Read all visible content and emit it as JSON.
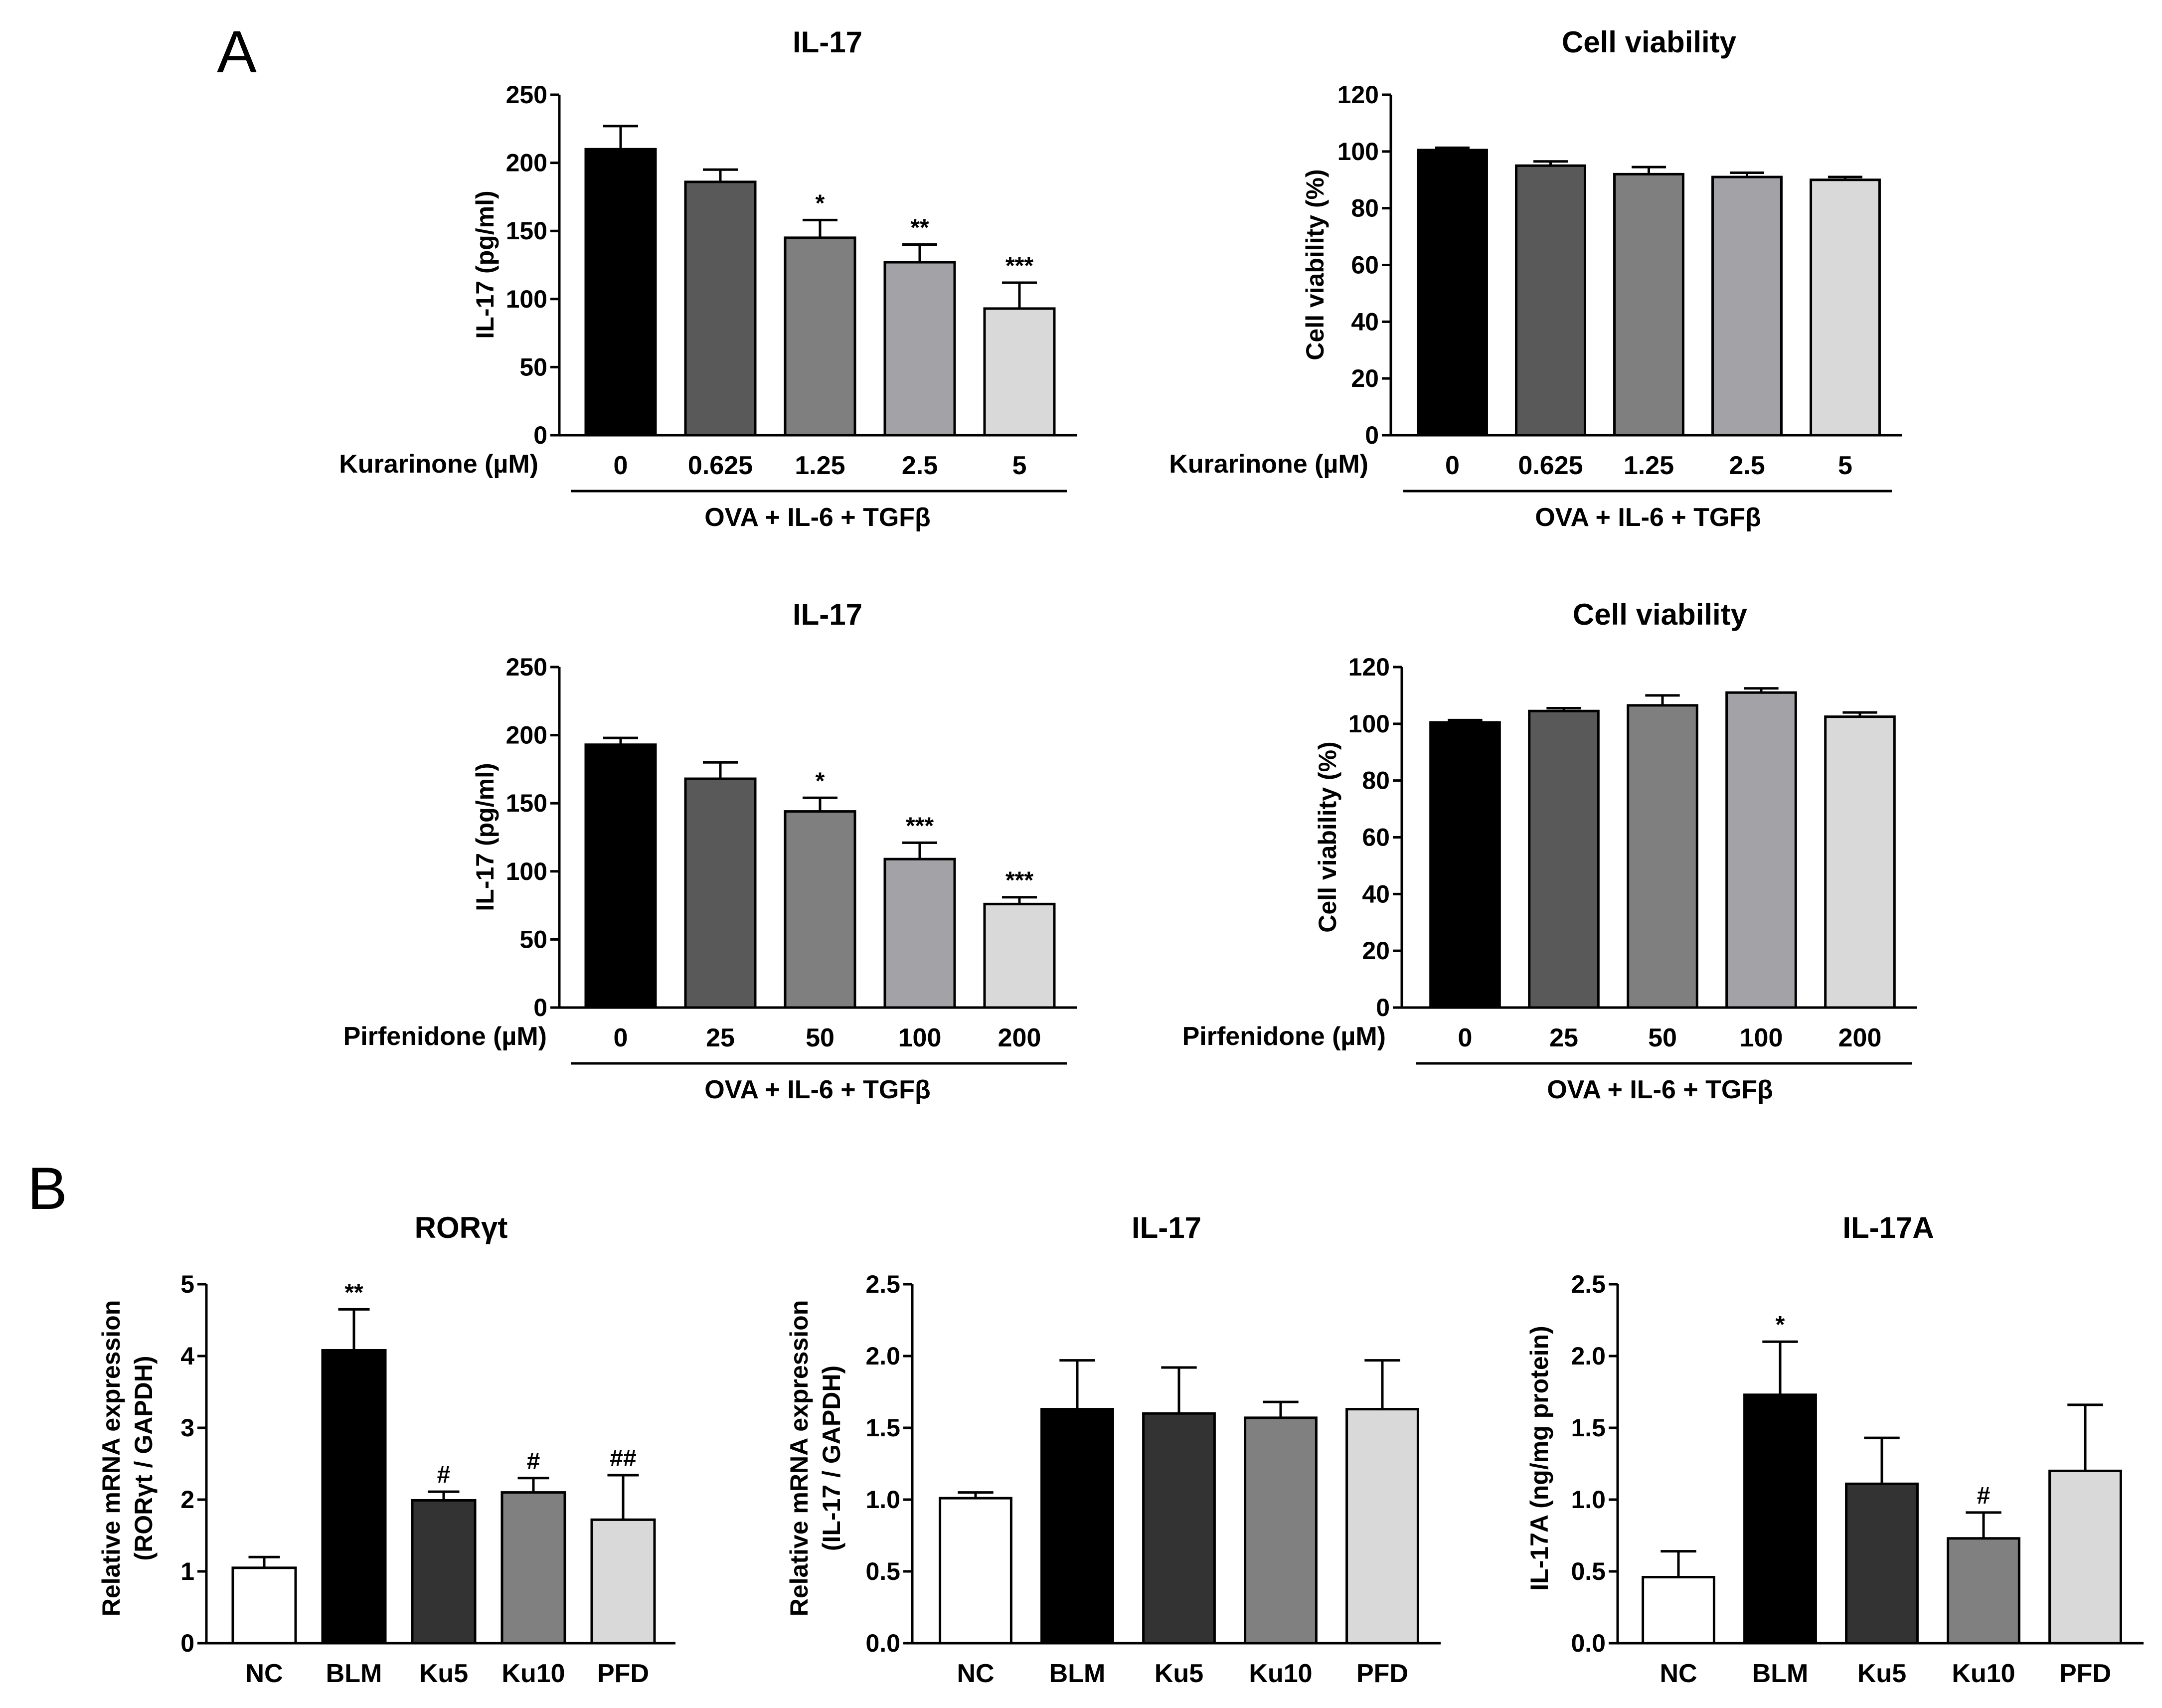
{
  "panels": {
    "A": "A",
    "B": "B"
  },
  "chart_data": [
    {
      "type": "bar",
      "title": "IL-17",
      "ylabel": "IL-17 (pg/ml)",
      "xlabel": "Kurarinone (µM)",
      "group_label": "OVA + IL-6 + TGFβ",
      "categories": [
        "0",
        "0.625",
        "1.25",
        "2.5",
        "5"
      ],
      "values": [
        210,
        186,
        145,
        127,
        93
      ],
      "errors": [
        17,
        9,
        13,
        13,
        19
      ],
      "significance": [
        "",
        "",
        "*",
        "**",
        "***"
      ],
      "ylim": [
        0,
        250
      ],
      "yticks": [
        0,
        50,
        100,
        150,
        200,
        250
      ],
      "ytick_labels": [
        "0",
        "50",
        "100",
        "150",
        "200",
        "250"
      ],
      "colors": [
        "#000000",
        "#595959",
        "#7f7f7f",
        "#a2a2a7",
        "#d9d9d9"
      ]
    },
    {
      "type": "bar",
      "title": "Cell viability",
      "ylabel": "Cell viability (%)",
      "xlabel": "Kurarinone (µM)",
      "group_label": "OVA + IL-6 + TGFβ",
      "categories": [
        "0",
        "0.625",
        "1.25",
        "2.5",
        "5"
      ],
      "values": [
        100.5,
        95,
        92,
        91,
        90
      ],
      "errors": [
        0.8,
        1.5,
        2.5,
        1.5,
        1.0
      ],
      "significance": [
        "",
        "",
        "",
        "",
        ""
      ],
      "ylim": [
        0,
        120
      ],
      "yticks": [
        0,
        20,
        40,
        60,
        80,
        100,
        120
      ],
      "ytick_labels": [
        "0",
        "20",
        "40",
        "60",
        "80",
        "100",
        "120"
      ],
      "colors": [
        "#000000",
        "#595959",
        "#7f7f7f",
        "#a2a2a7",
        "#d9d9d9"
      ]
    },
    {
      "type": "bar",
      "title": "IL-17",
      "ylabel": "IL-17 (pg/ml)",
      "xlabel": "Pirfenidone (µM)",
      "group_label": "OVA + IL-6 + TGFβ",
      "categories": [
        "0",
        "25",
        "50",
        "100",
        "200"
      ],
      "values": [
        193,
        168,
        144,
        109,
        76
      ],
      "errors": [
        5,
        12,
        10,
        12,
        5
      ],
      "significance": [
        "",
        "",
        "*",
        "***",
        "***"
      ],
      "ylim": [
        0,
        250
      ],
      "yticks": [
        0,
        50,
        100,
        150,
        200,
        250
      ],
      "ytick_labels": [
        "0",
        "50",
        "100",
        "150",
        "200",
        "250"
      ],
      "colors": [
        "#000000",
        "#595959",
        "#7f7f7f",
        "#a2a2a7",
        "#d9d9d9"
      ]
    },
    {
      "type": "bar",
      "title": "Cell viability",
      "ylabel": "Cell viability (%)",
      "xlabel": "Pirfenidone (µM)",
      "group_label": "OVA + IL-6 + TGFβ",
      "categories": [
        "0",
        "25",
        "50",
        "100",
        "200"
      ],
      "values": [
        100.5,
        104.5,
        106.5,
        111,
        102.5
      ],
      "errors": [
        0.8,
        1.0,
        3.5,
        1.5,
        1.5
      ],
      "significance": [
        "",
        "",
        "",
        "",
        ""
      ],
      "ylim": [
        0,
        120
      ],
      "yticks": [
        0,
        20,
        40,
        60,
        80,
        100,
        120
      ],
      "ytick_labels": [
        "0",
        "20",
        "40",
        "60",
        "80",
        "100",
        "120"
      ],
      "colors": [
        "#000000",
        "#595959",
        "#7f7f7f",
        "#a2a2a7",
        "#d9d9d9"
      ]
    },
    {
      "type": "bar",
      "title": "RORγt",
      "ylabel": [
        "Relative mRNA expression",
        "(RORγt / GAPDH)"
      ],
      "categories": [
        "NC",
        "BLM",
        "Ku5",
        "Ku10",
        "PFD"
      ],
      "values": [
        1.05,
        4.08,
        1.99,
        2.1,
        1.72
      ],
      "errors": [
        0.15,
        0.57,
        0.12,
        0.2,
        0.62
      ],
      "significance": [
        "",
        "**",
        "#",
        "#",
        "##"
      ],
      "ylim": [
        0,
        5
      ],
      "yticks": [
        0,
        1,
        2,
        3,
        4,
        5
      ],
      "ytick_labels": [
        "0",
        "1",
        "2",
        "3",
        "4",
        "5"
      ],
      "colors": [
        "#ffffff",
        "#000000",
        "#333333",
        "#808080",
        "#d9d9d9"
      ]
    },
    {
      "type": "bar",
      "title": "IL-17",
      "ylabel": [
        "Relative mRNA expression",
        "(IL-17 / GAPDH)"
      ],
      "categories": [
        "NC",
        "BLM",
        "Ku5",
        "Ku10",
        "PFD"
      ],
      "values": [
        1.01,
        1.63,
        1.6,
        1.57,
        1.63
      ],
      "errors": [
        0.04,
        0.34,
        0.32,
        0.11,
        0.34
      ],
      "significance": [
        "",
        "",
        "",
        "",
        ""
      ],
      "ylim": [
        0,
        2.5
      ],
      "yticks": [
        0,
        0.5,
        1,
        1.5,
        2,
        2.5
      ],
      "ytick_labels": [
        "0.0",
        "0.5",
        "1.0",
        "1.5",
        "2.0",
        "2.5"
      ],
      "colors": [
        "#ffffff",
        "#000000",
        "#333333",
        "#808080",
        "#d9d9d9"
      ]
    },
    {
      "type": "bar",
      "title": "IL-17A",
      "ylabel": [
        "IL-17A (ng/mg protein)"
      ],
      "categories": [
        "NC",
        "BLM",
        "Ku5",
        "Ku10",
        "PFD"
      ],
      "values": [
        0.46,
        1.73,
        1.11,
        0.73,
        1.2
      ],
      "errors": [
        0.18,
        0.37,
        0.32,
        0.18,
        0.46
      ],
      "significance": [
        "",
        "*",
        "",
        "#",
        ""
      ],
      "ylim": [
        0,
        2.5
      ],
      "yticks": [
        0,
        0.5,
        1,
        1.5,
        2,
        2.5
      ],
      "ytick_labels": [
        "0.0",
        "0.5",
        "1.0",
        "1.5",
        "2.0",
        "2.5"
      ],
      "colors": [
        "#ffffff",
        "#000000",
        "#333333",
        "#808080",
        "#d9d9d9"
      ]
    }
  ]
}
